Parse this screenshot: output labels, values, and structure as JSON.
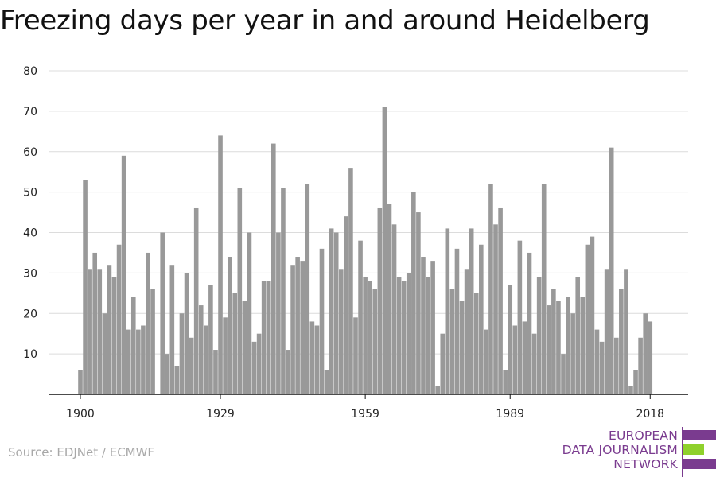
{
  "header": {
    "title": "Freezing days per year in and around Heidelberg"
  },
  "footer": {
    "source": "Source: EDJNet / ECMWF"
  },
  "logo": {
    "line1": "EUROPEAN",
    "line2": "DATA JOURNALISM",
    "line3": "NETWORK",
    "colors": {
      "text": "#7a3b8f",
      "bar_purple": "#7a3b8f",
      "bar_green": "#8fd12c"
    }
  },
  "chart_data": {
    "type": "bar",
    "title": "Freezing days per year in and around Heidelberg",
    "xlabel": "",
    "ylabel": "",
    "ylim": [
      0,
      80
    ],
    "yticks": [
      10,
      20,
      30,
      40,
      50,
      60,
      70,
      80
    ],
    "xticks": [
      1900,
      1929,
      1959,
      1989,
      2018
    ],
    "grid": true,
    "bar_color": "#999999",
    "categories": [
      1900,
      1901,
      1902,
      1903,
      1904,
      1905,
      1906,
      1907,
      1908,
      1909,
      1910,
      1911,
      1912,
      1913,
      1914,
      1915,
      1916,
      1917,
      1918,
      1919,
      1920,
      1921,
      1922,
      1923,
      1924,
      1925,
      1926,
      1927,
      1928,
      1929,
      1930,
      1931,
      1932,
      1933,
      1934,
      1935,
      1936,
      1937,
      1938,
      1939,
      1940,
      1941,
      1942,
      1943,
      1944,
      1945,
      1946,
      1947,
      1948,
      1949,
      1950,
      1951,
      1952,
      1953,
      1954,
      1955,
      1956,
      1957,
      1958,
      1959,
      1960,
      1961,
      1962,
      1963,
      1964,
      1965,
      1966,
      1967,
      1968,
      1969,
      1970,
      1971,
      1972,
      1973,
      1974,
      1975,
      1976,
      1977,
      1978,
      1979,
      1980,
      1981,
      1982,
      1983,
      1984,
      1985,
      1986,
      1987,
      1988,
      1989,
      1990,
      1991,
      1992,
      1993,
      1994,
      1995,
      1996,
      1997,
      1998,
      1999,
      2000,
      2001,
      2002,
      2003,
      2004,
      2005,
      2006,
      2007,
      2008,
      2009,
      2010,
      2011,
      2012,
      2013,
      2014,
      2015,
      2016,
      2017,
      2018
    ],
    "values": [
      6,
      53,
      31,
      35,
      31,
      20,
      32,
      29,
      37,
      59,
      16,
      24,
      16,
      17,
      35,
      26,
      0,
      40,
      10,
      32,
      7,
      20,
      30,
      14,
      46,
      22,
      17,
      27,
      11,
      64,
      19,
      34,
      25,
      51,
      23,
      40,
      13,
      15,
      28,
      28,
      62,
      40,
      51,
      11,
      32,
      34,
      33,
      52,
      18,
      17,
      36,
      6,
      41,
      40,
      31,
      44,
      56,
      19,
      38,
      29,
      28,
      26,
      46,
      71,
      47,
      42,
      29,
      28,
      30,
      50,
      45,
      34,
      29,
      33,
      2,
      15,
      41,
      26,
      36,
      23,
      31,
      41,
      25,
      37,
      16,
      52,
      42,
      46,
      6,
      27,
      17,
      38,
      18,
      35,
      15,
      29,
      52,
      22,
      26,
      23,
      10,
      24,
      20,
      29,
      24,
      37,
      39,
      16,
      13,
      31,
      61,
      14,
      26,
      31,
      2,
      6,
      14,
      20,
      18
    ]
  }
}
